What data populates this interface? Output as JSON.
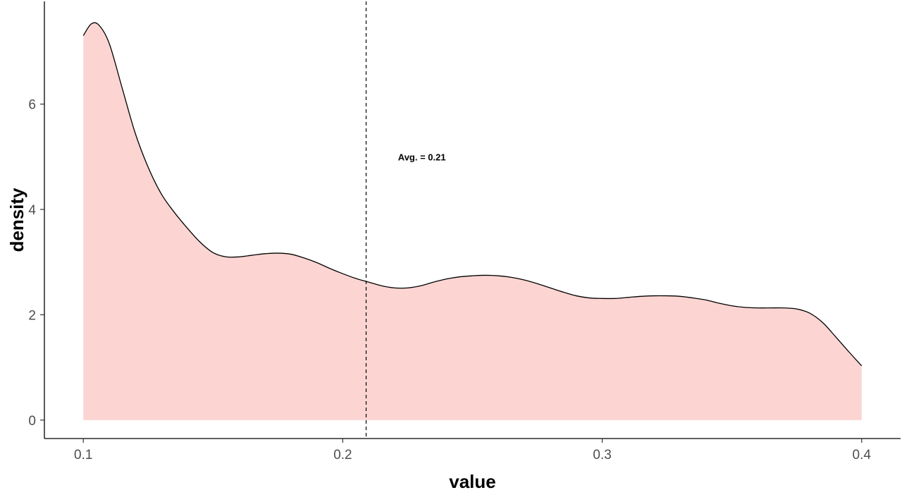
{
  "chart_data": {
    "type": "area",
    "title": "",
    "xlabel": "value",
    "ylabel": "density",
    "xlim": [
      0.085,
      0.415
    ],
    "ylim": [
      -0.35,
      7.95
    ],
    "x_ticks": [
      0.1,
      0.2,
      0.3,
      0.4
    ],
    "x_tick_labels": [
      "0.1",
      "0.2",
      "0.3",
      "0.4"
    ],
    "y_ticks": [
      0,
      2,
      4,
      6
    ],
    "y_tick_labels": [
      "0",
      "2",
      "4",
      "6"
    ],
    "grid": false,
    "legend": "none",
    "fill_color": "#fcd5d2",
    "line_color": "#000000",
    "series": [
      {
        "x": [
          0.1,
          0.103,
          0.106,
          0.11,
          0.115,
          0.12,
          0.125,
          0.13,
          0.135,
          0.14,
          0.145,
          0.15,
          0.155,
          0.16,
          0.165,
          0.17,
          0.175,
          0.18,
          0.185,
          0.19,
          0.195,
          0.2,
          0.205,
          0.21,
          0.215,
          0.22,
          0.225,
          0.23,
          0.235,
          0.24,
          0.245,
          0.25,
          0.255,
          0.26,
          0.265,
          0.27,
          0.275,
          0.28,
          0.285,
          0.29,
          0.295,
          0.3,
          0.305,
          0.31,
          0.315,
          0.32,
          0.325,
          0.33,
          0.335,
          0.34,
          0.345,
          0.35,
          0.355,
          0.36,
          0.365,
          0.37,
          0.375,
          0.38,
          0.385,
          0.39,
          0.395,
          0.4
        ],
        "values": [
          7.3,
          7.52,
          7.5,
          7.15,
          6.3,
          5.45,
          4.8,
          4.3,
          3.95,
          3.65,
          3.38,
          3.18,
          3.1,
          3.1,
          3.13,
          3.16,
          3.17,
          3.15,
          3.08,
          2.99,
          2.88,
          2.78,
          2.69,
          2.62,
          2.55,
          2.51,
          2.51,
          2.55,
          2.62,
          2.68,
          2.72,
          2.74,
          2.75,
          2.74,
          2.71,
          2.66,
          2.59,
          2.51,
          2.43,
          2.36,
          2.32,
          2.31,
          2.31,
          2.33,
          2.35,
          2.36,
          2.36,
          2.35,
          2.32,
          2.28,
          2.22,
          2.17,
          2.14,
          2.13,
          2.13,
          2.13,
          2.11,
          2.03,
          1.85,
          1.58,
          1.3,
          1.03
        ]
      }
    ],
    "mean_line": {
      "x": 0.209,
      "style": "dashed"
    },
    "annotations": [
      {
        "text": "Avg. = 0.21",
        "x": 0.2305,
        "y": 4.98
      }
    ]
  }
}
